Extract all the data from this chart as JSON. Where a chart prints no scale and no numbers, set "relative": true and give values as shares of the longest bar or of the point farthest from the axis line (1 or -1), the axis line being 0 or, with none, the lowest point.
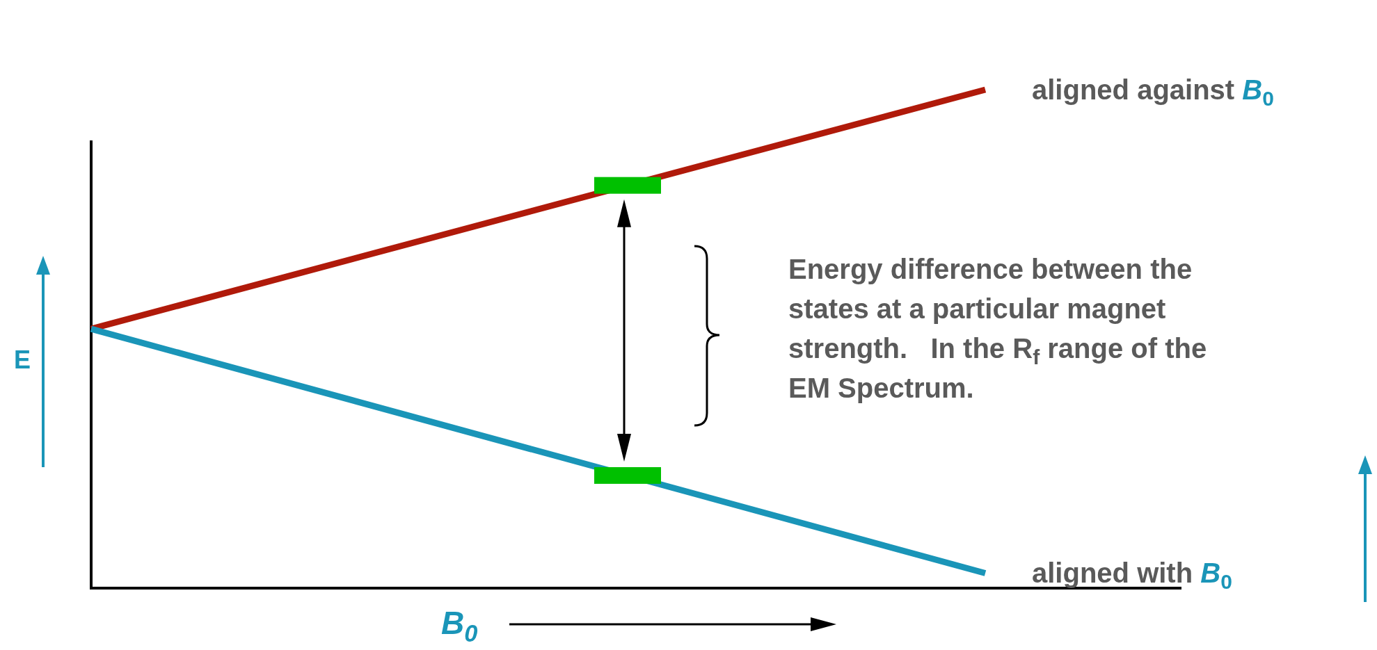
{
  "chart_data": {
    "type": "line",
    "relative": true,
    "xlabel": "B$_{0}$",
    "ylabel": "E",
    "categories": [
      null,
      null
    ],
    "series": [
      {
        "name": "aligned against B$_{0}$",
        "color": "#b01a0a",
        "values": [
          0.52,
          1.0
        ]
      },
      {
        "name": "aligned with B$_{0}$",
        "color": "#1a95b8",
        "values": [
          0.52,
          0.03
        ]
      }
    ],
    "annotations": [
      "Energy difference between the states at a particular magnet strength.   In the R$_{f}$ range of the EM Spectrum."
    ]
  }
}
